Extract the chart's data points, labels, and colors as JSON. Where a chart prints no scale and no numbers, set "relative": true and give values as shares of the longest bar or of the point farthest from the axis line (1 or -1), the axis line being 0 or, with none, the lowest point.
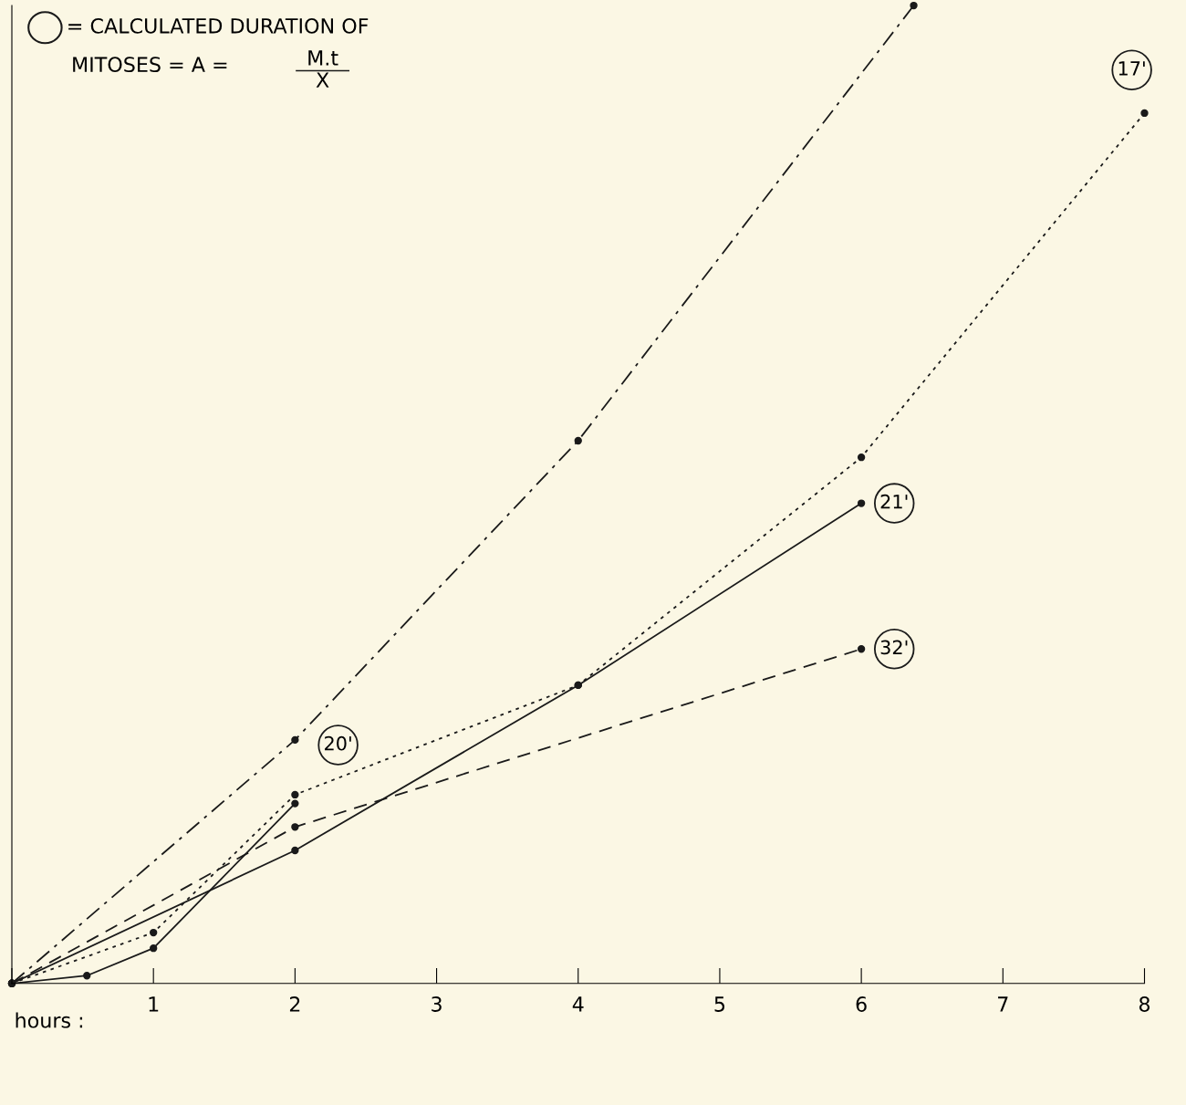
{
  "chart_data": {
    "type": "line",
    "relative": true,
    "xlabel": "hours :",
    "xlim": [
      0,
      8
    ],
    "xticks": [
      {
        "value": 0,
        "label": null
      },
      1,
      2,
      3,
      4,
      5,
      6,
      7,
      8
    ],
    "marker": "circle",
    "grid": false,
    "legend": false,
    "series": [
      {
        "color": "#1a1a1a",
        "line_style": "dashdot",
        "x": [
          0,
          2,
          4,
          6.37
        ],
        "values": [
          0,
          0.249,
          0.555,
          1.0
        ]
      },
      {
        "color": "#1a1a1a",
        "line_style": "dotted",
        "x": [
          0,
          1,
          2,
          4,
          6,
          8
        ],
        "values": [
          0,
          0.052,
          0.193,
          0.305,
          0.538,
          0.89
        ]
      },
      {
        "color": "#1a1a1a",
        "line_style": "solid",
        "x": [
          0,
          2,
          4,
          6
        ],
        "values": [
          0,
          0.136,
          0.305,
          0.491
        ]
      },
      {
        "color": "#1a1a1a",
        "line_style": "dashed",
        "x": [
          0,
          2,
          6
        ],
        "values": [
          0,
          0.16,
          0.342
        ]
      },
      {
        "color": "#1a1a1a",
        "line_style": "solid",
        "x": [
          0,
          0.53,
          1,
          2
        ],
        "values": [
          0,
          0.008,
          0.036,
          0.184
        ]
      }
    ],
    "annotations": [
      "20'",
      "17'",
      "21'",
      "32'",
      "= CALCULATED DURATION OF",
      "MITOSES = A =",
      "M.t",
      "X"
    ]
  }
}
